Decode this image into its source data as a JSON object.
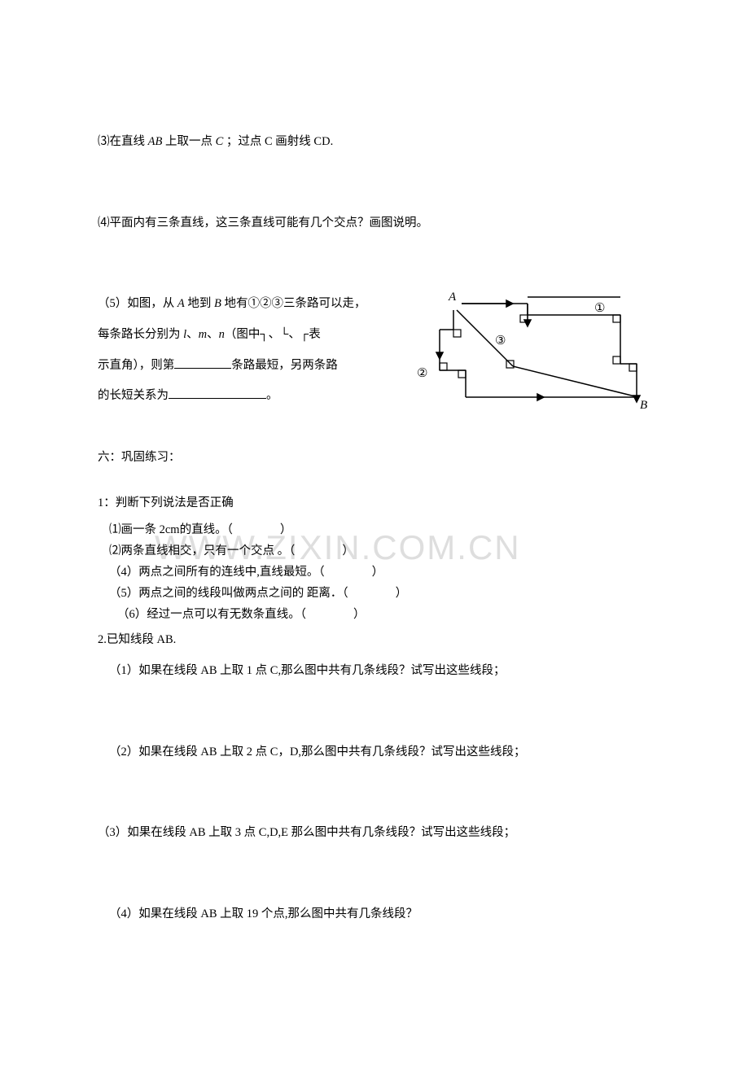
{
  "q3": {
    "text_1": "⑶在直线 ",
    "text_ab": "AB",
    "text_2": " 上取一点 ",
    "text_c": "C",
    "text_3": " ；过点 C 画射线 CD."
  },
  "q4": {
    "text": "⑷平面内有三条直线，这三条直线可能有几个交点？画图说明。"
  },
  "q5": {
    "line1_a": "（5）如图，从 ",
    "A": "A",
    "line1_b": " 地到 ",
    "B": "B",
    "line1_c": " 地有①②③三条路可以走，",
    "line2_a": "每条路长分别为 ",
    "l": "l",
    "sep1": "、",
    "m": "m",
    "sep2": "、",
    "n": "n",
    "line2_b": "（图中┐、└、┌表",
    "line3_a": "示直角），则第",
    "line3_b": "条路最短，另两条路",
    "line4_a": "的长短关系为",
    "line4_b": "。"
  },
  "diagram": {
    "labels": {
      "A": "A",
      "B": "B",
      "c1": "①",
      "c2": "②",
      "c3": "③"
    },
    "stroke": "#000000",
    "box_size": 9
  },
  "sec6_title": "六：巩固练习：",
  "sec6_q1_title": "1：判断下列说法是否正确",
  "sec6_q1_items": [
    "⑴画一条 2cm的直线。（　　　　）",
    "⑵两条直线相交，只有一个交点 。（　　　　）",
    "（4）两点之间所有的连线中,直线最短。（　　　　）",
    "（5）两点之间的线段叫做两点之间的 距离．（　　　　）",
    "（6）经过一点可以有无数条直线。（　　　　）"
  ],
  "sec6_q2_title": "2.已知线段 AB.",
  "sec6_q2_items": [
    "（1）如果在线段 AB 上取 1 点 C,那么图中共有几条线段？试写出这些线段；",
    "（2）如果在线段 AB 上取 2 点 C，D,那么图中共有几条线段？试写出这些线段；",
    "（3）如果在线段 AB 上取 3 点 C,D,E 那么图中共有几条线段？试写出这些线段；",
    "（4）如果在线段 AB 上取 19 个点,那么图中共有几条线段？"
  ],
  "watermark": "WWW.ZIXIN.COM.CN"
}
